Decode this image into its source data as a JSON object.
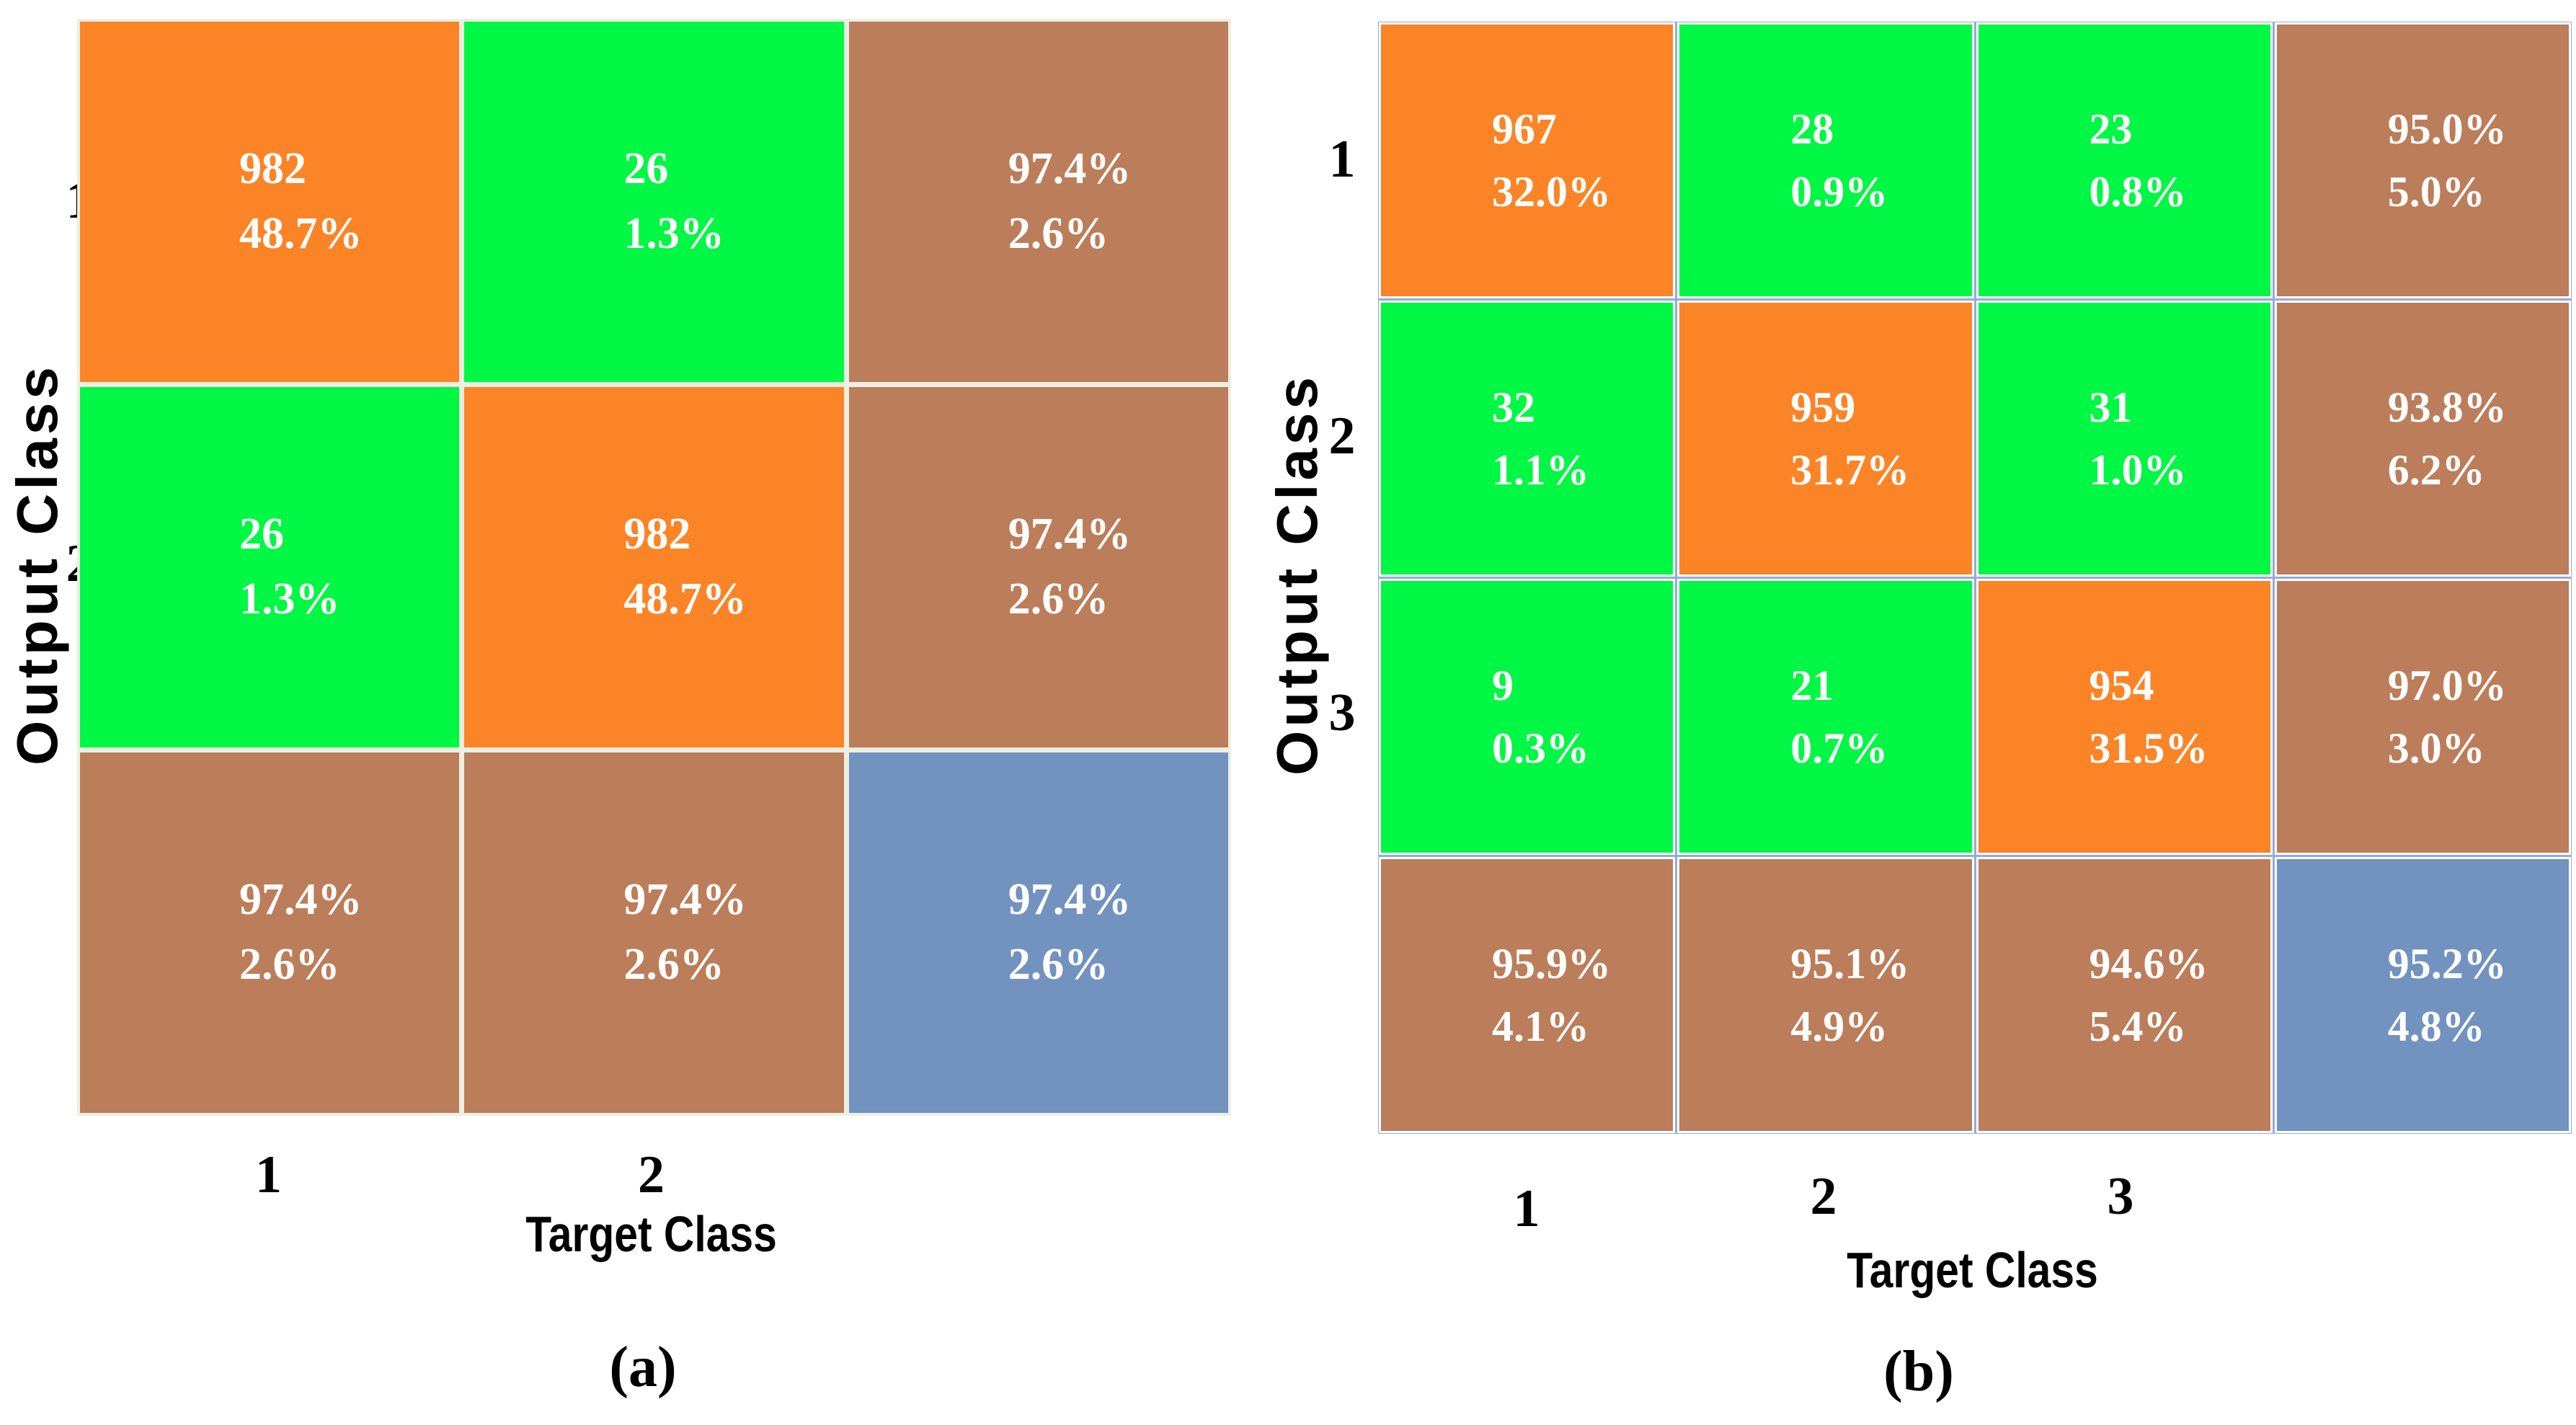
{
  "colors": {
    "orange": "#FB8427",
    "green": "#00F744",
    "brown": "#BB7D5A",
    "blue": "#7292BF",
    "cell_text": "#FFFFFF",
    "label_text": "#000000",
    "matrix_a_gap": "#ECEFE2",
    "matrix_b_border": "#94ACD6",
    "page_background": "#FFFFFF"
  },
  "chart_data": [
    {
      "type": "heatmap",
      "id": "a",
      "caption": "(a)",
      "subtitle": "",
      "xlabel": "Target Class",
      "ylabel": "Output Class",
      "x_tick_labels": [
        "1",
        "2"
      ],
      "y_tick_labels": [
        "1",
        "2"
      ],
      "n_classes": 2,
      "grid_size": 3,
      "counts": [
        [
          982,
          26
        ],
        [
          26,
          982
        ]
      ],
      "overall_accuracy": "97.4%",
      "overall_error": "2.6%",
      "cells": [
        [
          {
            "lines": [
              "982",
              "48.7%"
            ],
            "bg": "orange"
          },
          {
            "lines": [
              "26",
              "1.3%"
            ],
            "bg": "green"
          },
          {
            "lines": [
              "97.4%",
              "2.6%"
            ],
            "bg": "brown"
          }
        ],
        [
          {
            "lines": [
              "26",
              "1.3%"
            ],
            "bg": "green"
          },
          {
            "lines": [
              "982",
              "48.7%"
            ],
            "bg": "orange"
          },
          {
            "lines": [
              "97.4%",
              "2.6%"
            ],
            "bg": "brown"
          }
        ],
        [
          {
            "lines": [
              "97.4%",
              "2.6%"
            ],
            "bg": "brown"
          },
          {
            "lines": [
              "97.4%",
              "2.6%"
            ],
            "bg": "brown"
          },
          {
            "lines": [
              "97.4%",
              "2.6%"
            ],
            "bg": "blue"
          }
        ]
      ]
    },
    {
      "type": "heatmap",
      "id": "b",
      "caption": "(b)",
      "subtitle": "",
      "xlabel": "Target Class",
      "ylabel": "Output Class",
      "x_tick_labels": [
        "1",
        "2",
        "3"
      ],
      "y_tick_labels": [
        "1",
        "2",
        "3"
      ],
      "n_classes": 3,
      "grid_size": 4,
      "counts": [
        [
          967,
          28,
          23
        ],
        [
          32,
          959,
          31
        ],
        [
          9,
          21,
          954
        ]
      ],
      "overall_accuracy": "95.2%",
      "overall_error": "4.8%",
      "cells": [
        [
          {
            "lines": [
              "967",
              "32.0%"
            ],
            "bg": "orange"
          },
          {
            "lines": [
              "28",
              "0.9%"
            ],
            "bg": "green"
          },
          {
            "lines": [
              "23",
              "0.8%"
            ],
            "bg": "green"
          },
          {
            "lines": [
              "95.0%",
              "5.0%"
            ],
            "bg": "brown"
          }
        ],
        [
          {
            "lines": [
              "32",
              "1.1%"
            ],
            "bg": "green"
          },
          {
            "lines": [
              "959",
              "31.7%"
            ],
            "bg": "orange"
          },
          {
            "lines": [
              "31",
              "1.0%"
            ],
            "bg": "green"
          },
          {
            "lines": [
              "93.8%",
              "6.2%"
            ],
            "bg": "brown"
          }
        ],
        [
          {
            "lines": [
              "9",
              "0.3%"
            ],
            "bg": "green"
          },
          {
            "lines": [
              "21",
              "0.7%"
            ],
            "bg": "green"
          },
          {
            "lines": [
              "954",
              "31.5%"
            ],
            "bg": "orange"
          },
          {
            "lines": [
              "97.0%",
              "3.0%"
            ],
            "bg": "brown"
          }
        ],
        [
          {
            "lines": [
              "95.9%",
              "4.1%"
            ],
            "bg": "brown"
          },
          {
            "lines": [
              "95.1%",
              "4.9%"
            ],
            "bg": "brown"
          },
          {
            "lines": [
              "94.6%",
              "5.4%"
            ],
            "bg": "brown"
          },
          {
            "lines": [
              "95.2%",
              "4.8%"
            ],
            "bg": "blue"
          }
        ]
      ]
    }
  ]
}
